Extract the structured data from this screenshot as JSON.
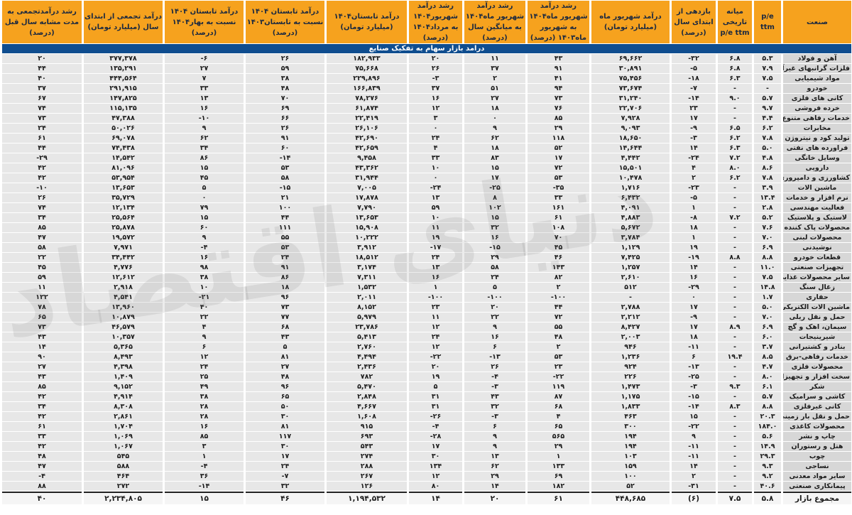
{
  "watermark": "دنیای اقتصاد",
  "colors": {
    "header_bg": "#F6A21E",
    "banner_bg": "#0F4D8F",
    "row_bg": "#E7E7E7",
    "industry_bg": "#D7D7D7",
    "footer_bg": "#F5F5F5"
  },
  "chart_data": {
    "type": "table",
    "title": "درامد بازار سهام به تفکیک صنایع",
    "columns": [
      "صنعت",
      "p/e ttm",
      "میانه تاریخی p/e ttm",
      "بازدهی از ابتدای سال (درصد)",
      "درآمد شهریور ماه (میلیارد تومان)",
      "رشد درآمد شهریور ماه۱۴۰۴ به شهریور ماه۱۴۰۳ (درصد)",
      "رشد درآمد شهریور ماه۱۴۰۴ به میانگین سال (درصد)",
      "رشد درآمد شهریور۱۴۰۴ به مرداد۱۴۰۴ (درصد)",
      "درآمد تابستان۱۴۰۴ (میلیارد تومان)",
      "درآمد تابستان ۱۴۰۴ نسبت به تابستان۱۴۰۳ (درصد)",
      "درآمد تابستان ۱۴۰۴ نسبت به بهار۱۴۰۴ (درصد)",
      "درآمد تجمعی از ابتدای سال (میلیارد تومان)",
      "رشد درآمدتجمعی به مدت مشابه سال قبل (درصد)"
    ],
    "rows": [
      [
        "آهن و فولاد",
        "۵.۳",
        "۶.۸",
        "-۳۲",
        "۶۹,۶۶۲",
        "۴۳",
        "۱۱",
        "۲۰",
        "۱۸۲,۹۳۳",
        "۲۶",
        "-۶",
        "۳۷۷,۳۷۸",
        "۲۰"
      ],
      [
        "فلزات گرانبهای غیرآهن",
        "۷.۹",
        "۶.۸",
        "-۵",
        "۳۰,۸۹۱",
        "۹۱",
        "۳۷",
        "۲۶",
        "۷۵,۶۶۸",
        "۵۹",
        "۲۷",
        "۱۳۵,۲۹۱",
        "۴۴"
      ],
      [
        "مواد شیمیایی",
        "۷.۵",
        "۶.۳",
        "-۱۸",
        "۷۵,۴۵۶",
        "۴۱",
        "۲",
        "-۳",
        "۲۲۹,۸۹۶",
        "۳۸",
        "۷",
        "۴۴۴,۵۶۴",
        "۴۰"
      ],
      [
        "خودرو",
        "-",
        "-",
        "-۷",
        "۷۳,۶۷۴",
        "۹۴",
        "۵۱",
        "۳۷",
        "۱۶۶,۸۳۹",
        "۴۸",
        "۳۳",
        "۲۹۱,۹۱۵",
        "۳۷"
      ],
      [
        "کانی های فلزی",
        "۵.۷",
        "۹.۰",
        "-۱۴",
        "۳۱,۲۴۰",
        "۷۳",
        "۲۷",
        "۱۶",
        "۷۸,۲۷۶",
        "۷۰",
        "۱۳",
        "۱۴۷,۸۲۵",
        "۶۷"
      ],
      [
        "خرده فروشی",
        "۹.۷",
        "-",
        "۲۳",
        "۲۲,۷۰۶",
        "۷۶",
        "۱۸",
        "۱۲",
        "۶۱,۸۷۴",
        "۶۹",
        "۱۶",
        "۱۱۵,۱۳۵",
        "۷۴"
      ],
      [
        "خدمات رفاهی متنوع",
        "۴.۴",
        "-",
        "۱۷",
        "۷,۹۲۸",
        "۸۵",
        "۰",
        "۳",
        "۲۲,۴۱۹",
        "۶۶",
        "-۱۰",
        "۴۷,۳۸۸",
        "۷۳"
      ],
      [
        "مخابرات",
        "۶.۲",
        "۶.۵",
        "-۹",
        "۹,۰۹۳",
        "۲۹",
        "۹",
        "۰",
        "۲۶,۱۰۶",
        "۲۶",
        "۹",
        "۵۰,۰۲۶",
        "۲۴"
      ],
      [
        "تولید کود و نیتروژن",
        "۷.۸",
        "۶.۲",
        "-۳",
        "۱۸,۶۵۰",
        "۱۱۸",
        "۶۲",
        "۲۴",
        "۴۲,۶۹۰",
        "۹۱",
        "۶۲",
        "۶۹,۰۷۸",
        "۶۱"
      ],
      [
        "فراورده های نفتی",
        "۵.۰",
        "۶.۳",
        "۱۴",
        "۱۴,۶۴۴",
        "۵۲",
        "۱۸",
        "۴",
        "۴۲,۶۵۹",
        "۶۰",
        "۳۴",
        "۷۴,۴۳۸",
        "۴۴"
      ],
      [
        "وسایل خانگی",
        "۴.۸",
        "۷.۲",
        "-۲۴",
        "۴,۴۴۲",
        "۱۷",
        "۸۳",
        "۳۳",
        "۹,۴۵۸",
        "-۱۴",
        "۸۶",
        "۱۴,۵۴۲",
        "-۲۹"
      ],
      [
        "دارویی",
        "۸.۶",
        "۸.۰",
        "۴",
        "۱۵,۵۰۱",
        "۷۲",
        "۱۵",
        "۱۰",
        "۴۳,۳۶۲",
        "۵۳",
        "۱۵",
        "۸۱,۰۹۶",
        "۴۲"
      ],
      [
        "کشاورزی و دامپروری",
        "۷.۸",
        "۶.۲",
        "۲",
        "۱۰,۴۷۸",
        "۵۳",
        "۱۷",
        "۰",
        "۳۱,۹۴۴",
        "۵۸",
        "۴۵",
        "۵۳,۹۵۴",
        "۴۲"
      ],
      [
        "ماشین الات",
        "۳.۹",
        "-",
        "-۲۳",
        "۱,۷۱۶",
        "-۳۵",
        "-۲۵",
        "-۲۴",
        "۷,۰۰۵",
        "-۱۵",
        "۵",
        "۱۳,۶۵۳",
        "-۱۰"
      ],
      [
        "نرم افزار و خدمات",
        "۱۳.۴",
        "-",
        "-۵",
        "۶,۴۳۲",
        "۳۳",
        "۸",
        "۱۳",
        "۱۷,۸۷۸",
        "۲۱",
        "۰",
        "۳۵,۷۲۹",
        "۲۶"
      ],
      [
        "فعالیت مهندسی",
        "۲.۸",
        "-",
        "۱",
        "۴,۰۹۱",
        "۱۶۱",
        "۱۰۲",
        "۵۹",
        "۷,۷۹۰",
        "۱۰۰",
        "۷۹",
        "۱۲,۱۳۴",
        "۷۴"
      ],
      [
        "لاستیک و پلاستیک",
        "۵.۲",
        "۷.۲",
        "-۸",
        "۴,۸۸۳",
        "۶۱",
        "۱۵",
        "۱۰",
        "۱۳,۶۵۳",
        "۴۴",
        "۱۵",
        "۲۵,۵۶۴",
        "۳۴"
      ],
      [
        "محصولات پاک کننده",
        "۷.۶",
        "-",
        "۱۸",
        "۵,۶۷۲",
        "۱۰۸",
        "۳۲",
        "۱۱",
        "۱۵,۹۰۸",
        "۱۱۱",
        "۶۰",
        "۲۵,۸۷۸",
        "۸۵"
      ],
      [
        "محصولات لبنی",
        "۷.۰",
        "-",
        "۱",
        "۳,۷۸۴",
        "۷۰",
        "۱۶",
        "۱۹",
        "۱۰,۲۲۲",
        "۵۵",
        "۹",
        "۱۹,۵۷۲",
        "۴۷"
      ],
      [
        "نوشیدنی",
        "۶.۹",
        "-",
        "۱۹",
        "۱,۱۲۹",
        "۴۵",
        "-۱۵",
        "-۱۷",
        "۳,۹۱۲",
        "۵۳",
        "-۴",
        "۷,۹۷۱",
        "۵۸"
      ],
      [
        "قطعات خودرو",
        "۸.۸",
        "۸.۸",
        "-۱۹",
        "۷,۴۲۵",
        "۴۶",
        "۲۹",
        "۲۴",
        "۱۸,۵۱۲",
        "۲۴",
        "۱۶",
        "۳۴,۴۴۲",
        "۲۲"
      ],
      [
        "تجهیزات صنعتی",
        "۱۱.۰",
        "-",
        "۱۴",
        "۱,۲۵۷",
        "۱۴۳",
        "۵۸",
        "۱۳",
        "۳,۱۷۴",
        "۹۱",
        "۹۸",
        "۴,۷۷۶",
        "۴۵"
      ],
      [
        "سایر محصولات غذایی",
        "۷.۵",
        "-",
        "۱۶",
        "۲,۶۱۰",
        "۸۲",
        "۲۴",
        "۱۶",
        "۷,۳۱۱",
        "۸۶",
        "۳۸",
        "۱۲,۶۱۲",
        "۵۹"
      ],
      [
        "زغال سنگ",
        "۱۴.۸",
        "-",
        "-۲۹",
        "۵۱۲",
        "۲",
        "۵",
        "۱",
        "۱,۵۳۲",
        "۱۸",
        "۱۰",
        "۲,۹۱۸",
        "۱۱"
      ],
      [
        "حفاری",
        "۱.۷",
        "-",
        "۰",
        "-",
        "-۱۰۰",
        "-۱۰۰",
        "-۱۰۰",
        "۲,۰۱۱",
        "۹۶",
        "-۲۱",
        "۴,۵۴۱",
        "۱۲۲"
      ],
      [
        "ماشین الات الکتریکی",
        "۵.۰",
        "-",
        "۱۷",
        "۲,۷۸۸",
        "۴۴",
        "۲۰",
        "۲۳",
        "۸,۱۵۲",
        "۷۳",
        "۴۰",
        "۱۳,۹۶۰",
        "۷۸"
      ],
      [
        "حمل و نقل ریلی",
        "۷.۰",
        "-",
        "-۹",
        "۲,۲۱۲",
        "۷۲",
        "۲۲",
        "۱۱",
        "۵,۹۷۹",
        "۷۷",
        "۲۲",
        "۱۰,۸۷۹",
        "۶۵"
      ],
      [
        "سیمان، اهک و گچ",
        "۶.۹",
        "۸.۹",
        "۱۷",
        "۸,۴۲۷",
        "۵۵",
        "۹",
        "۱۲",
        "۲۳,۷۸۶",
        "۶۸",
        "۴",
        "۴۶,۵۷۹",
        "۷۳"
      ],
      [
        "شیرینیجات",
        "۶.۰",
        "-",
        "۱۸",
        "۲,۰۰۳",
        "۴۸",
        "۱۶",
        "۲۴",
        "۵,۴۱۳",
        "۴۳",
        "۹",
        "۱۰,۳۵۷",
        "۴۳"
      ],
      [
        "بنادر و کشتیرانی",
        "۳.۷",
        "-",
        "-۱۱",
        "۹۴۶",
        "۲",
        "۶",
        "۱۲",
        "۲,۷۶۰",
        "۵",
        "۶",
        "۵,۳۶۵",
        "۱۴"
      ],
      [
        "خدمات رفاهی-برق",
        "۸.۵",
        "۱۹.۴",
        "۶",
        "۱,۲۳۶",
        "۵۳",
        "-۱۳",
        "-۲۲",
        "۴,۴۹۴",
        "۸۱",
        "۱۲",
        "۸,۴۹۳",
        "۹۰"
      ],
      [
        "محصولات فلزی",
        "۴.۷",
        "-",
        "-۱۳",
        "۹۲۴",
        "۲۳",
        "۲۶",
        "۲۰",
        "۲,۴۳۶",
        "۲۷",
        "۲۴",
        "۴,۳۹۸",
        "۲۷"
      ],
      [
        "سخت افزار و تجهیزات",
        "۸.۰",
        "-",
        "-۲۵",
        "۲۲۶",
        "-۲۲",
        "-۴",
        "۱۹",
        "۷۸۲",
        "۴۸",
        "۲۵",
        "۱,۴۰۹",
        "۴۳"
      ],
      [
        "شکر",
        "۶.۱",
        "۹.۳",
        "-۳",
        "۱,۴۷۳",
        "۱۱۹",
        "-۳",
        "۵",
        "۵,۴۷۰",
        "۹۶",
        "۴۹",
        "۹,۱۵۲",
        "۸۵"
      ],
      [
        "کاشی و سرامیک",
        "۵.۷",
        "-",
        "-۱۵",
        "۱,۱۷۵",
        "۸۷",
        "۴۳",
        "۳۱",
        "۲,۸۴۸",
        "۶۵",
        "۳۸",
        "۴,۹۱۴",
        "۴۲"
      ],
      [
        "کانی غیرفلزی",
        "۸.۸",
        "۸.۳",
        "-۱۴",
        "۱,۸۳۳",
        "۶۸",
        "۳۲",
        "۳۱",
        "۴,۶۶۷",
        "۵۰",
        "۲۸",
        "۸,۳۰۸",
        "۳۴"
      ],
      [
        "حمل و نقل بار زمینی",
        "۲۰.۳",
        "-",
        "۱۵",
        "۴۶۳",
        "۴",
        "-۳",
        "-۲۶",
        "۱,۶۰۸",
        "۳۰",
        "۲۸",
        "۲,۸۶۱",
        "۴۲"
      ],
      [
        "محصولات کاغذی",
        "۱۸۴.۰",
        "-",
        "-۲۲",
        "۳۰۰",
        "۶۵",
        "۶",
        "-۴",
        "۹۱۵",
        "۸۱",
        "۱۶",
        "۱,۷۰۴",
        "۶۱"
      ],
      [
        "چاپ و نشر",
        "۵.۶",
        "-",
        "۹",
        "۱۹۴",
        "۵۶۵",
        "۹",
        "-۲۸",
        "۶۹۳",
        "۱۱۷",
        "۸۵",
        "۱,۰۶۹",
        "۳۳"
      ],
      [
        "هتل و رستوران",
        "۱۴.۹",
        "-",
        "-۱۱",
        "۱۹۴",
        "۲۹",
        "۹",
        "۱۷",
        "۵۴۳",
        "۳۰",
        "۳",
        "۱,۰۶۷",
        "۴۲"
      ],
      [
        "چوب",
        "۲۹.۳",
        "-",
        "-۱۱",
        "۱۰۳",
        "۱",
        "۱۳",
        "۳۰",
        "۲۷۴",
        "۱۷",
        "۱",
        "۵۴۵",
        "۴۸"
      ],
      [
        "نساجی",
        "۹.۳",
        "-",
        "۱۴",
        "۱۵۹",
        "۱۳۳",
        "۶۲",
        "۱۳۴",
        "۲۸۸",
        "۲۴",
        "-۴",
        "۵۸۸",
        "۴۷"
      ],
      [
        "سایر مواد معدنی",
        "۹.۲",
        "-",
        "۲",
        "۱۰۰",
        "۶۹",
        "۲۹",
        "۱۲",
        "۲۶۷",
        "-۷",
        "۳۶",
        "۴۶۴",
        "-۴"
      ],
      [
        "پیمانکاری صنعتی",
        "۴۰.۶",
        "-",
        "-۳۱",
        "۵۲",
        "۱۸۲",
        "۱۴",
        "۸۰",
        "۱۲۶",
        "۳۲",
        "-۱۴",
        "۲۷۲",
        "۸۸"
      ]
    ],
    "footer": [
      "مجموع بازار",
      "۵.۸",
      "۷.۵",
      "(۶)",
      "۴۴۸,۶۸۵",
      "۶۱",
      "۲۰",
      "۱۴",
      "۱,۱۹۴,۵۳۲",
      "۴۶",
      "۱۵",
      "۲,۲۳۴,۸۰۵",
      "۴۰"
    ]
  }
}
